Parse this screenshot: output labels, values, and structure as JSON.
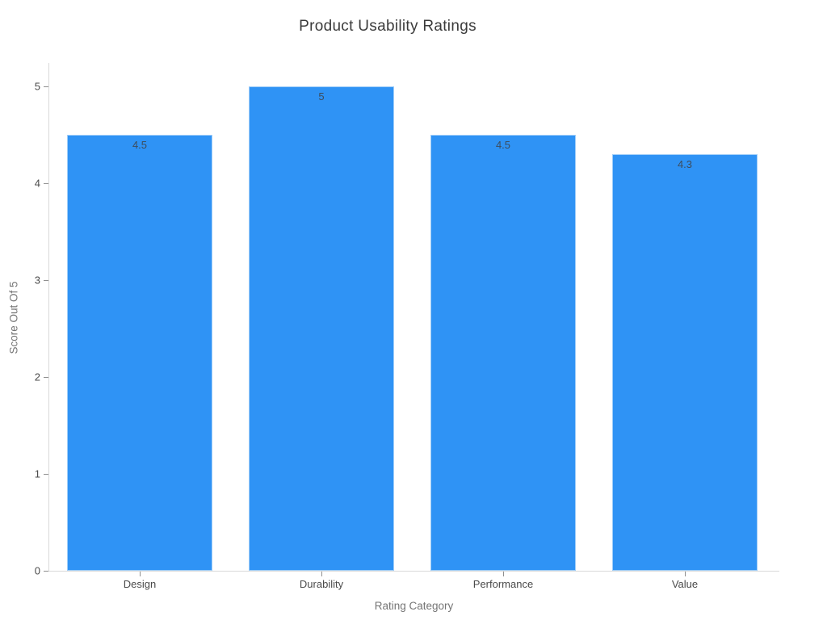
{
  "chart_data": {
    "type": "bar",
    "title": "Product Usability Ratings",
    "xlabel": "Rating Category",
    "ylabel": "Score Out Of 5",
    "categories": [
      "Design",
      "Durability",
      "Performance",
      "Value"
    ],
    "values": [
      4.5,
      5,
      4.5,
      4.3
    ],
    "bar_labels": [
      "4.5",
      "5",
      "4.5",
      "4.3"
    ],
    "ylim": [
      0,
      5
    ],
    "yticks": [
      0,
      1,
      2,
      3,
      4,
      5
    ],
    "grid": false,
    "legend": "none",
    "bar_color": "#2f93f5",
    "axis_line_color": "#d9d9d9",
    "tick_color": "#8f8f8f",
    "tick_label_color": "#4a4a4a",
    "title_color": "#3b3b3b",
    "axis_title_color": "#757575",
    "bar_value_label_color": "#3d4d5e",
    "background_color": "#ffffff"
  }
}
